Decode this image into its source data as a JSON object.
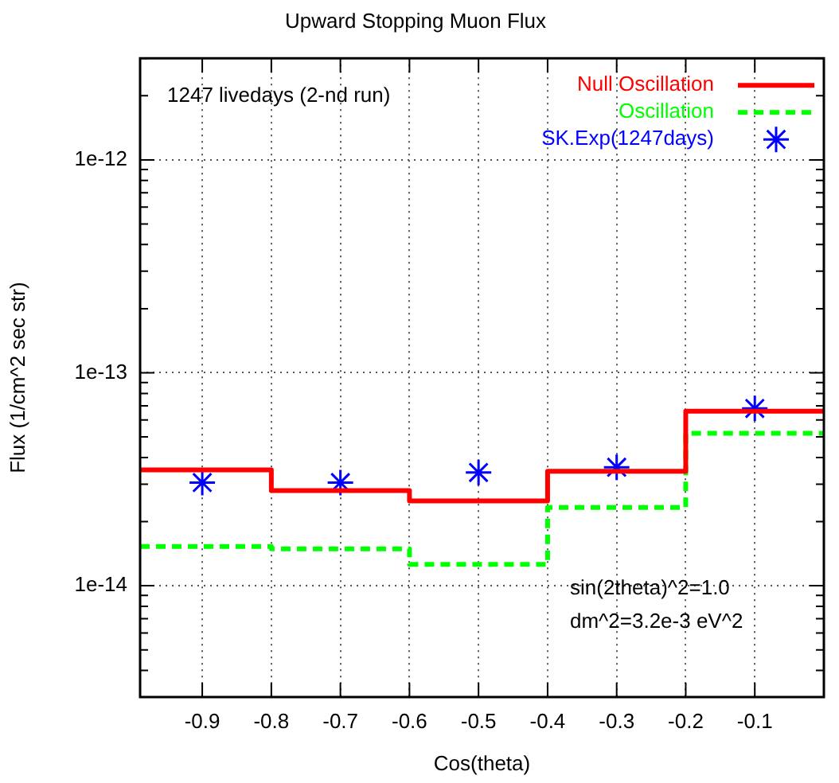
{
  "chart_data": {
    "type": "step",
    "title": "Upward Stopping Muon Flux",
    "xlabel": "Cos(theta)",
    "ylabel": "Flux (1/cm^2 sec str)",
    "annotations": [
      "1247 livedays (2-nd run)",
      "sin(2theta)^2=1.0",
      "dm^2=3.2e-3 eV^2"
    ],
    "series": [
      {
        "name": "Null Oscillation",
        "color": "#ff0000",
        "line_style": "solid",
        "x": [
          -0.99,
          -0.8,
          -0.6,
          -0.4,
          -0.2,
          0
        ],
        "values": [
          3.5e-14,
          2.8e-14,
          2.5e-14,
          3.45e-14,
          6.6e-14,
          6.6e-14
        ]
      },
      {
        "name": "Oscillation",
        "color": "#00ff00",
        "line_style": "dashed",
        "x": [
          -0.99,
          -0.8,
          -0.6,
          -0.4,
          -0.2,
          0
        ],
        "values": [
          1.53e-14,
          1.49e-14,
          1.26e-14,
          2.33e-14,
          5.2e-14,
          5.2e-14
        ]
      },
      {
        "name": "SK.Exp(1247days)",
        "type": "scatter",
        "color": "#0000ff",
        "marker": "cross",
        "x": [
          -0.9,
          -0.7,
          -0.5,
          -0.3,
          -0.1
        ],
        "values": [
          3.05e-14,
          3.05e-14,
          3.4e-14,
          3.6e-14,
          6.8e-14
        ]
      }
    ],
    "xlim": [
      -0.99,
      0
    ],
    "xticks": [
      -0.9,
      -0.8,
      -0.7,
      -0.6,
      -0.5,
      -0.4,
      -0.3,
      -0.2,
      -0.1
    ],
    "ylim": [
      3e-15,
      3e-12
    ],
    "log": "y",
    "yticks": [
      {
        "value": 3e-15,
        "label": null
      },
      {
        "value": 4e-15,
        "label": null
      },
      {
        "value": 5e-15,
        "label": null
      },
      {
        "value": 6e-15,
        "label": null
      },
      {
        "value": 7e-15,
        "label": null
      },
      {
        "value": 8e-15,
        "label": null
      },
      {
        "value": 9e-15,
        "label": null
      },
      1e-14,
      {
        "value": 2e-14,
        "label": null
      },
      {
        "value": 3e-14,
        "label": null
      },
      {
        "value": 4e-14,
        "label": null
      },
      {
        "value": 5e-14,
        "label": null
      },
      {
        "value": 6e-14,
        "label": null
      },
      {
        "value": 7e-14,
        "label": null
      },
      {
        "value": 8e-14,
        "label": null
      },
      {
        "value": 9e-14,
        "label": null
      },
      1e-13,
      {
        "value": 2e-13,
        "label": null
      },
      {
        "value": 3e-13,
        "label": null
      },
      {
        "value": 4e-13,
        "label": null
      },
      {
        "value": 5e-13,
        "label": null
      },
      {
        "value": 6e-13,
        "label": null
      },
      {
        "value": 7e-13,
        "label": null
      },
      {
        "value": 8e-13,
        "label": null
      },
      {
        "value": 9e-13,
        "label": null
      },
      1e-12,
      {
        "value": 2e-12,
        "label": null
      },
      {
        "value": 3e-12,
        "label": null
      }
    ],
    "grid": true,
    "legend": "top right"
  }
}
